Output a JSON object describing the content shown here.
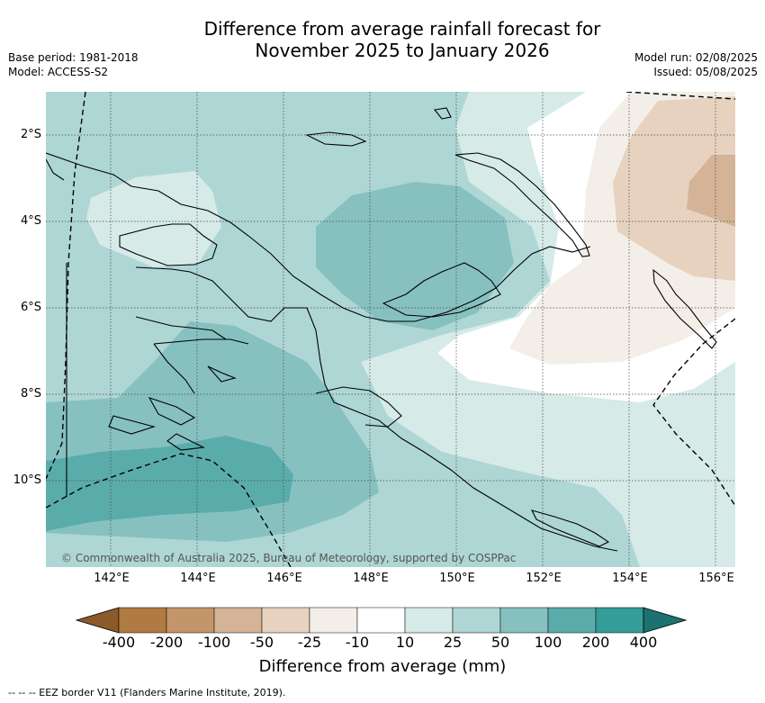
{
  "title_line1": "Difference from average rainfall forecast for",
  "title_line2": "November 2025 to January 2026",
  "meta_left": {
    "base_period": "Base period: 1981-2018",
    "model": "Model: ACCESS-S2"
  },
  "meta_right": {
    "model_run": "Model run: 02/08/2025",
    "issued": "Issued: 05/08/2025"
  },
  "map": {
    "lon_ticks": [
      "142°E",
      "144°E",
      "146°E",
      "148°E",
      "150°E",
      "152°E",
      "154°E",
      "156°E"
    ],
    "lat_ticks": [
      "2°S",
      "4°S",
      "6°S",
      "8°S",
      "10°S"
    ],
    "copyright": "© Commonwealth of Australia 2025, Bureau of Meteorology, supported by COSPPac"
  },
  "colorbar": {
    "ticks": [
      "-400",
      "-200",
      "-100",
      "-50",
      "-25",
      "-10",
      "10",
      "25",
      "50",
      "100",
      "200",
      "400"
    ],
    "colors": [
      "#8c5a2a",
      "#b07a42",
      "#c4956a",
      "#d4b396",
      "#e6d2bf",
      "#f3eee8",
      "#ffffff",
      "#d6eae8",
      "#aed6d5",
      "#86c1c0",
      "#5aacab",
      "#349c99",
      "#1c7270"
    ],
    "label": "Difference from average (mm)"
  },
  "footnote": "--  --  -- EEZ border V11 (Flanders Marine Institute, 2019)."
}
